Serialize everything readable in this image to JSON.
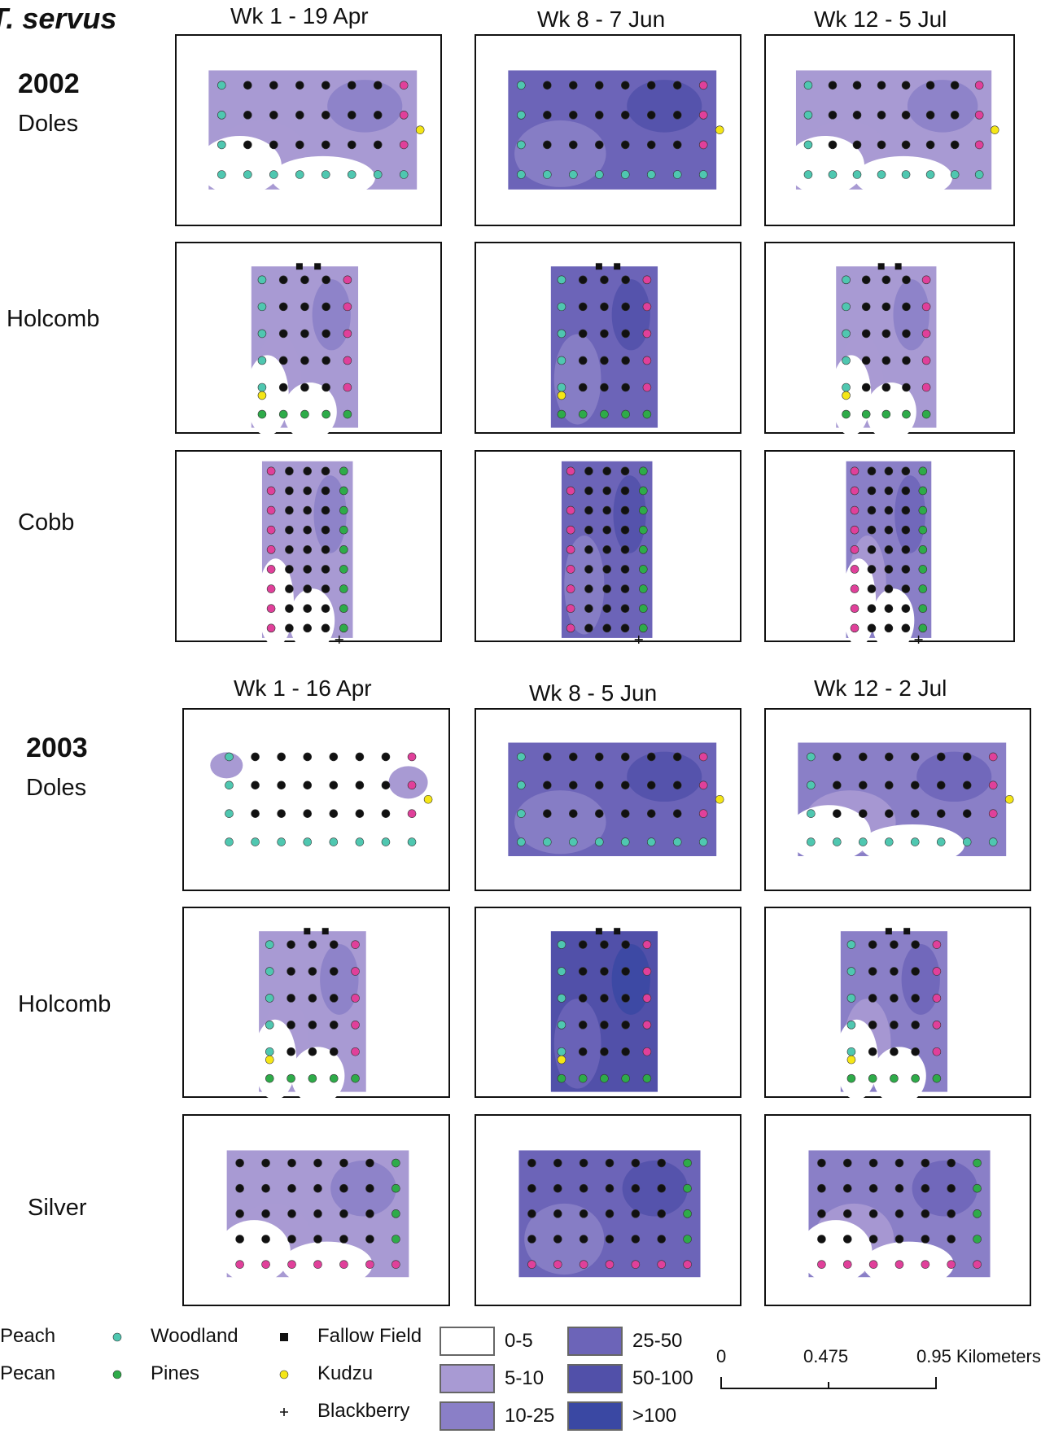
{
  "figure": {
    "title": "T. servus",
    "colors": {
      "Peach": "#e0409a",
      "Pecan": "#2eab49",
      "Woodland": "#4fc7b0",
      "Pines": "#2eab49",
      "Fallow Field": "#111111",
      "Kudzu": "#f5e616",
      "Blackberry": "#111111",
      "trap": "#111111"
    },
    "density_colors": [
      "#ffffff",
      "#a89ad3",
      "#8a7fc7",
      "#6c64b8",
      "#5150a9",
      "#3a48a3"
    ]
  },
  "year_2002": {
    "year": "2002",
    "weeks": [
      "Wk 1 - 19 Apr",
      "Wk 8 - 7 Jun",
      "Wk 12 - 5 Jul"
    ],
    "sites": [
      "Doles",
      "Holcomb",
      "Cobb"
    ]
  },
  "year_2003": {
    "year": "2003",
    "weeks": [
      "Wk 1 - 16 Apr",
      "Wk 8 - 5 Jun",
      "Wk 12 - 2 Jul"
    ],
    "sites": [
      "Doles",
      "Holcomb",
      "Silver"
    ]
  },
  "legend": {
    "symbols": [
      {
        "label": "Peach",
        "icon": "peach-dot-icon",
        "color": "#e0409a"
      },
      {
        "label": "Pecan",
        "icon": "pecan-dot-icon",
        "color": "#2eab49"
      },
      {
        "label": "Woodland",
        "icon": "woodland-dot-icon",
        "color": "#4fc7b0"
      },
      {
        "label": "Pines",
        "icon": "pines-dot-icon",
        "color": "#2eab49"
      },
      {
        "label": "Fallow Field",
        "icon": "square-icon",
        "color": "#111111"
      },
      {
        "label": "Kudzu",
        "icon": "kudzu-dot-icon",
        "color": "#f5e616"
      },
      {
        "label": "Blackberry",
        "icon": "plus-icon",
        "color": "#111111"
      }
    ],
    "ranges": [
      {
        "label": "0-5",
        "color": "#ffffff"
      },
      {
        "label": "5-10",
        "color": "#a89ad3"
      },
      {
        "label": "10-25",
        "color": "#8a7fc7"
      },
      {
        "label": "25-50",
        "color": "#6c64b8"
      },
      {
        "label": "50-100",
        "color": "#5150a9"
      },
      {
        "label": ">100",
        "color": "#3a48a3"
      }
    ]
  },
  "scale_bar": {
    "ticks": [
      "0",
      "0.475",
      "0.95 Kilometers"
    ]
  }
}
